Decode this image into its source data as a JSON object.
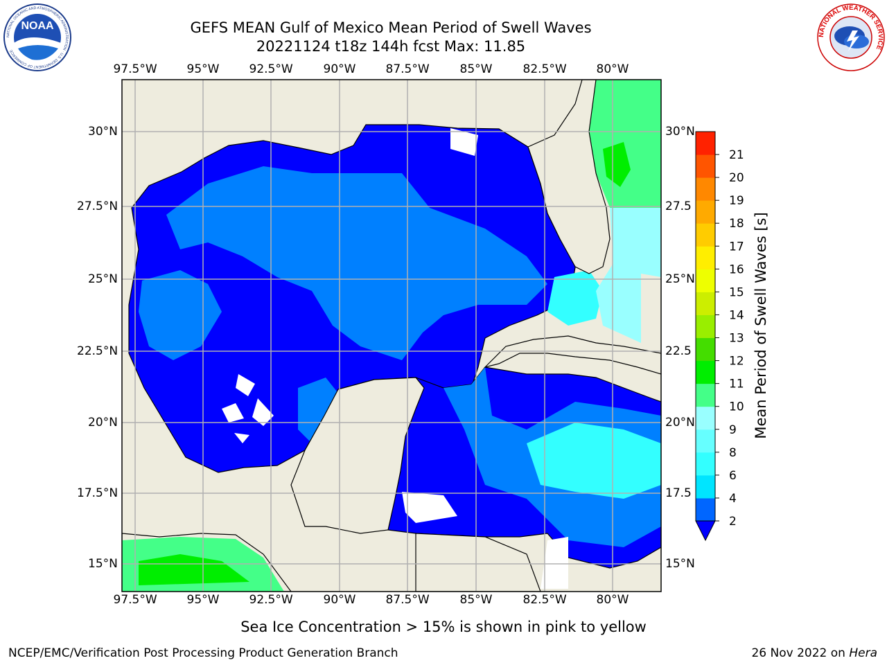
{
  "title_line1": "GEFS MEAN Gulf of Mexico Mean Period of Swell Waves",
  "title_line2": "20221124 t18z 144h fcst   Max: 11.85",
  "lon_labels": [
    "97.5°W",
    "95°W",
    "92.5°W",
    "90°W",
    "87.5°W",
    "85°W",
    "82.5°W",
    "80°W"
  ],
  "lat_labels_left": [
    "30°N",
    "27.5°N",
    "25°N",
    "22.5°N",
    "20°N",
    "17.5°N",
    "15°N"
  ],
  "lat_labels_right": [
    "30°N",
    "27.5",
    "25°N",
    "22.5",
    "20°N",
    "17.5",
    "15°N"
  ],
  "colorbar": {
    "title": "Mean Period of Swell Waves [s]",
    "ticks": [
      "2",
      "4",
      "6",
      "8",
      "9",
      "10",
      "11",
      "12",
      "13",
      "14",
      "15",
      "16",
      "17",
      "18",
      "19",
      "20",
      "21"
    ],
    "colors": [
      "#0066ff",
      "#00e5ff",
      "#33ffff",
      "#66ffff",
      "#99ffff",
      "#44ff88",
      "#00ee00",
      "#44dd00",
      "#99ee00",
      "#ccee00",
      "#eeff00",
      "#ffee00",
      "#ffcc00",
      "#ffaa00",
      "#ff8800",
      "#ff5500",
      "#ff2200"
    ],
    "extend_color": "#0000ff"
  },
  "colors": {
    "land": "#eeecde",
    "sea_dark": "#0000ff",
    "sea_mid": "#0080ff",
    "sea_light": "#00ffff",
    "sea_pale": "#99ffff",
    "sea_green": "#44ff88",
    "sea_bright_green": "#00ee00",
    "grid": "#b0b0b0"
  },
  "logos": {
    "left": "NOAA",
    "left_ring": "NATIONAL OCEANIC AND ATMOSPHERIC ADMINISTRATION · U.S. DEPARTMENT OF COMMERCE",
    "right_ring": "NATIONAL WEATHER SERVICE"
  },
  "note": "Sea Ice Concentration > 15% is shown in pink to yellow",
  "footer_left": "NCEP/EMC/Verification Post Processing Product Generation Branch",
  "footer_right_date": "26 Nov 2022 on ",
  "footer_right_host": "Hera"
}
